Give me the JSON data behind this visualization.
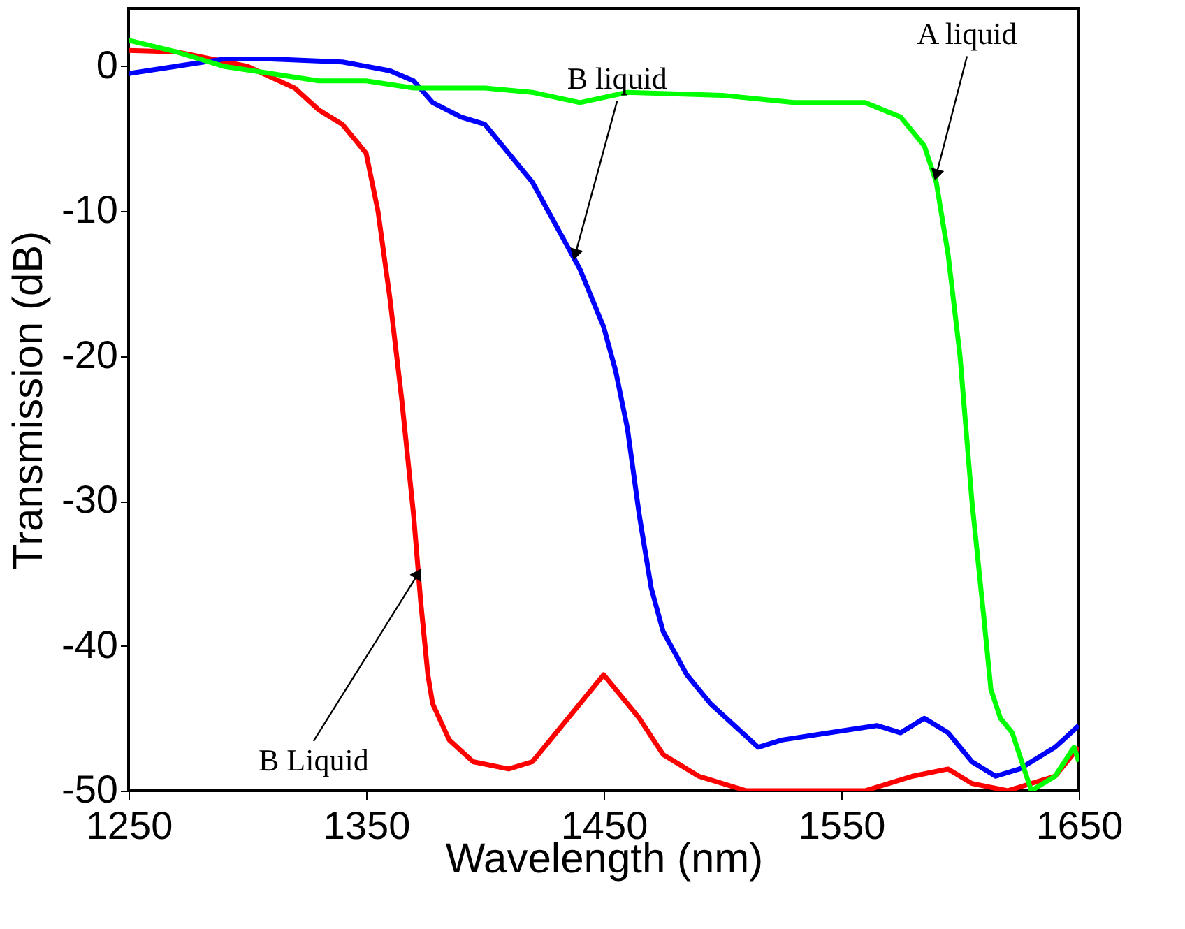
{
  "chart_data": {
    "type": "line",
    "xlabel": "Wavelength (nm)",
    "ylabel": "Transmission  (dB)",
    "xlim": [
      1250,
      1650
    ],
    "xticks": [
      1250,
      1350,
      1450,
      1550,
      1650
    ],
    "ylim": [
      -50,
      4
    ],
    "yticks": [
      0,
      -10,
      -20,
      -30,
      -40,
      -50
    ],
    "grid": false,
    "legend": false,
    "marker": "none",
    "line_style": "solid",
    "series": [
      {
        "color": "#ff0000",
        "x": [
          1250,
          1270,
          1300,
          1320,
          1330,
          1340,
          1350,
          1355,
          1360,
          1365,
          1370,
          1373,
          1376,
          1378,
          1385,
          1395,
          1410,
          1420,
          1430,
          1440,
          1450,
          1455,
          1465,
          1475,
          1490,
          1510,
          1560,
          1580,
          1595,
          1605,
          1620,
          1640,
          1650
        ],
        "values": [
          1.1,
          1,
          0,
          -1.5,
          -3,
          -4,
          -6,
          -10,
          -16,
          -23,
          -31,
          -37,
          -42,
          -44,
          -46.5,
          -48,
          -48.5,
          -48,
          -46,
          -44,
          -42,
          -43,
          -45,
          -47.5,
          -49,
          -50,
          -50,
          -49,
          -48.5,
          -49.5,
          -50,
          -49,
          -47
        ]
      },
      {
        "color": "#0000ff",
        "x": [
          1250,
          1270,
          1290,
          1310,
          1340,
          1360,
          1370,
          1378,
          1390,
          1400,
          1410,
          1420,
          1430,
          1440,
          1450,
          1455,
          1460,
          1465,
          1470,
          1475,
          1485,
          1495,
          1505,
          1515,
          1525,
          1545,
          1565,
          1575,
          1585,
          1595,
          1605,
          1615,
          1625,
          1640,
          1650
        ],
        "values": [
          -0.5,
          0,
          0.5,
          0.5,
          0.3,
          -0.3,
          -1,
          -2.5,
          -3.5,
          -4,
          -6,
          -8,
          -11,
          -14,
          -18,
          -21,
          -25,
          -31,
          -36,
          -39,
          -42,
          -44,
          -45.5,
          -47,
          -46.5,
          -46,
          -45.5,
          -46,
          -45,
          -46,
          -48,
          -49,
          -48.5,
          -47,
          -45.5
        ]
      },
      {
        "color": "#00ff00",
        "x": [
          1250,
          1270,
          1290,
          1310,
          1330,
          1350,
          1370,
          1400,
          1420,
          1440,
          1460,
          1500,
          1530,
          1560,
          1575,
          1585,
          1590,
          1595,
          1600,
          1605,
          1610,
          1613,
          1617,
          1622,
          1627,
          1630,
          1640,
          1648,
          1650
        ],
        "values": [
          1.8,
          1,
          0,
          -0.5,
          -1,
          -1,
          -1.5,
          -1.5,
          -1.8,
          -2.5,
          -1.8,
          -2,
          -2.5,
          -2.5,
          -3.5,
          -5.5,
          -8,
          -13,
          -20,
          -30,
          -38,
          -43,
          -45,
          -46,
          -48.5,
          -50,
          -49,
          -47,
          -48
        ]
      }
    ],
    "annotations": [
      {
        "text": "B liquid",
        "x": 1438,
        "y": -13
      },
      {
        "text": "A liquid",
        "x": 1590,
        "y": -7.5
      },
      {
        "text": "B Liquid",
        "x": 1372,
        "y": -35
      }
    ]
  }
}
